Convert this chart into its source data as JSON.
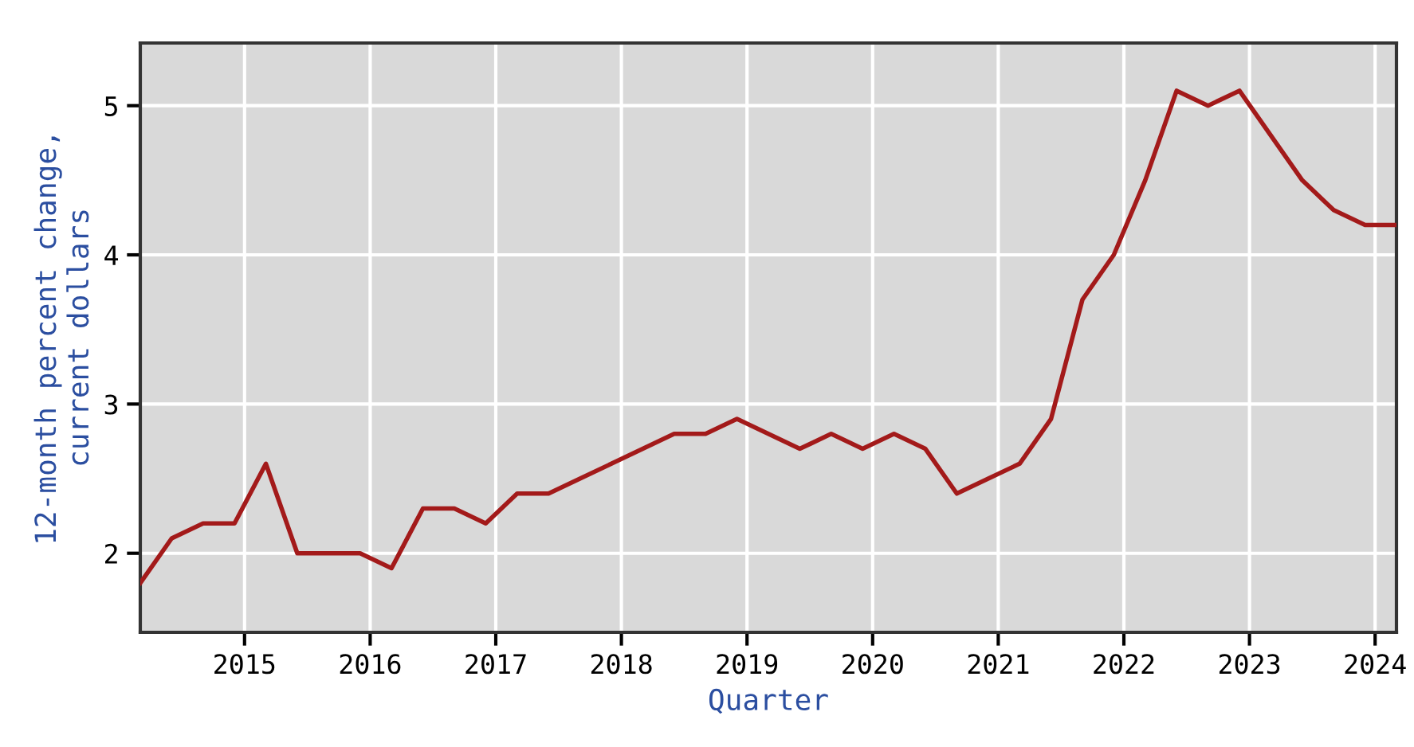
{
  "chart_data": {
    "type": "line",
    "xlabel": "Quarter",
    "ylabel": "12-month percent change,\ncurrent dollars",
    "x": [
      2014.17,
      2014.42,
      2014.67,
      2014.92,
      2015.17,
      2015.42,
      2015.67,
      2015.92,
      2016.17,
      2016.42,
      2016.67,
      2016.92,
      2017.17,
      2017.42,
      2017.67,
      2017.92,
      2018.17,
      2018.42,
      2018.67,
      2018.92,
      2019.17,
      2019.42,
      2019.67,
      2019.92,
      2020.17,
      2020.42,
      2020.67,
      2020.92,
      2021.17,
      2021.42,
      2021.67,
      2021.92,
      2022.17,
      2022.42,
      2022.67,
      2022.92,
      2023.17,
      2023.42,
      2023.67,
      2023.92,
      2024.17
    ],
    "series": [
      {
        "color": "#a31a1a",
        "values": [
          1.8,
          2.1,
          2.2,
          2.2,
          2.6,
          2.0,
          2.0,
          2.0,
          1.9,
          2.3,
          2.3,
          2.2,
          2.4,
          2.4,
          2.5,
          2.6,
          2.7,
          2.8,
          2.8,
          2.9,
          2.8,
          2.7,
          2.8,
          2.7,
          2.8,
          2.7,
          2.4,
          2.5,
          2.6,
          2.9,
          3.7,
          4.0,
          4.5,
          5.1,
          5.0,
          5.1,
          4.8,
          4.5,
          4.3,
          4.2,
          4.2
        ]
      }
    ],
    "xlim": [
      2014.17,
      2024.17
    ],
    "ylim": [
      1.47,
      5.42
    ],
    "xticks": [
      2015,
      2016,
      2017,
      2018,
      2019,
      2020,
      2021,
      2022,
      2023,
      2024
    ],
    "yticks": [
      2,
      3,
      4,
      5
    ],
    "grid": true,
    "legend": false,
    "marker": "none",
    "line_style": "solid"
  }
}
